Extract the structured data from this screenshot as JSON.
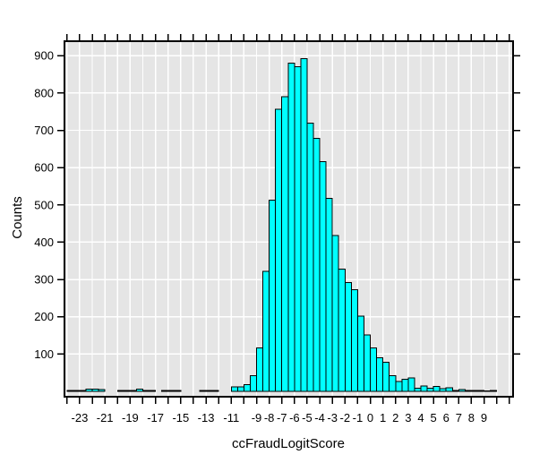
{
  "chart_data": {
    "type": "bar",
    "subtype": "histogram",
    "title": "",
    "xlabel": "ccFraudLogitScore",
    "ylabel": "Counts",
    "grid": true,
    "legend": "none",
    "xlim": [
      -24.2,
      11.3
    ],
    "ylim": [
      -14.4,
      939
    ],
    "bin_width": 0.5,
    "bin_start": [
      -24,
      -23.5,
      -23,
      -22.5,
      -22,
      -21.5,
      -21,
      -20.5,
      -20,
      -19.5,
      -19,
      -18.5,
      -18,
      -17.5,
      -17,
      -16.5,
      -16,
      -15.5,
      -15,
      -14.5,
      -14,
      -13.5,
      -13,
      -12.5,
      -12,
      -11.5,
      -11,
      -10.5,
      -10,
      -9.5,
      -9,
      -8.5,
      -8,
      -7.5,
      -7,
      -6.5,
      -6,
      -5.5,
      -5,
      -4.5,
      -4,
      -3.5,
      -3,
      -2.5,
      -2,
      -1.5,
      -1,
      -0.5,
      0,
      0.5,
      1,
      1.5,
      2,
      2.5,
      3,
      3.5,
      4,
      4.5,
      5,
      5.5,
      6,
      6.5,
      7,
      7.5,
      8,
      8.5,
      9,
      9.5
    ],
    "counts": [
      2,
      2,
      2,
      6,
      6,
      5,
      0,
      0,
      2,
      2,
      3,
      6,
      3,
      2,
      0,
      3,
      2,
      2,
      0,
      0,
      0,
      2,
      2,
      2,
      0,
      0,
      12,
      12,
      18,
      42,
      116,
      322,
      513,
      757,
      790,
      880,
      871,
      892,
      719,
      679,
      616,
      517,
      418,
      328,
      292,
      272,
      202,
      151,
      117,
      90,
      78,
      42,
      26,
      32,
      36,
      8,
      14,
      8,
      13,
      7,
      10,
      3,
      5,
      3,
      2,
      2,
      1,
      2
    ],
    "x_minor_ticks": {
      "from": -24,
      "to": 11,
      "step": 1
    },
    "x_labeled_ticks": [
      -23,
      -21,
      -19,
      -17,
      -15,
      -13,
      -11,
      -9,
      -8,
      -7,
      -6,
      -5,
      -4,
      -3,
      -2,
      -1,
      0,
      1,
      2,
      3,
      4,
      5,
      6,
      7,
      8,
      9
    ],
    "y_ticks": [
      100,
      200,
      300,
      400,
      500,
      600,
      700,
      800,
      900
    ],
    "colors": {
      "bar_fill": "#00FFFF",
      "bar_stroke": "#000000",
      "plot_bg": "#E5E5E5",
      "grid": "#FFFFFF",
      "border": "#000000",
      "tick": "#000000",
      "text": "#000000"
    }
  }
}
